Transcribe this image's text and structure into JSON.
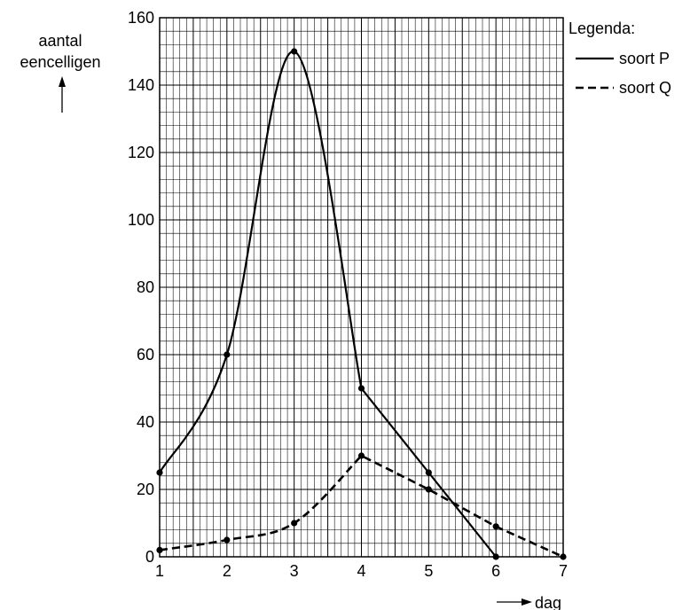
{
  "chart_data": {
    "type": "line",
    "title": "",
    "xlabel": "dag",
    "ylabel_line1": "aantal",
    "ylabel_line2": "eencelligen",
    "xlim": [
      1,
      7
    ],
    "ylim": [
      0,
      160
    ],
    "x_ticks": [
      "1",
      "2",
      "3",
      "4",
      "5",
      "6",
      "7"
    ],
    "y_ticks": [
      "0",
      "20",
      "40",
      "60",
      "80",
      "100",
      "120",
      "140",
      "160"
    ],
    "grid": true,
    "legend": {
      "title": "Legenda:",
      "position": "top-right",
      "entries": [
        "soort P",
        "soort Q"
      ]
    },
    "series": [
      {
        "name": "soort P",
        "style": "solid",
        "points": [
          [
            1,
            25
          ],
          [
            2,
            60
          ],
          [
            3,
            150
          ],
          [
            4,
            50
          ],
          [
            5,
            25
          ],
          [
            6,
            0
          ]
        ]
      },
      {
        "name": "soort Q",
        "style": "dashed",
        "points": [
          [
            1,
            2
          ],
          [
            2,
            5
          ],
          [
            3,
            10
          ],
          [
            4,
            30
          ],
          [
            5,
            20
          ],
          [
            6,
            9
          ],
          [
            7,
            0
          ]
        ]
      }
    ]
  }
}
